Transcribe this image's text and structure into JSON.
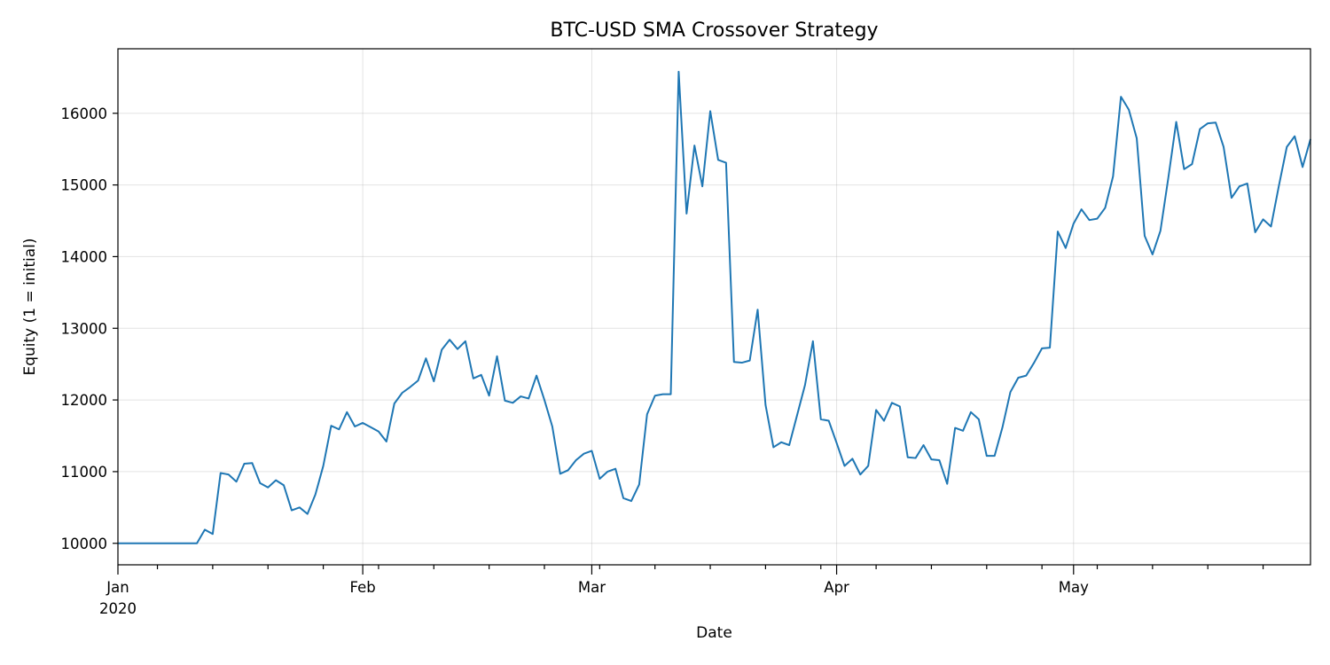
{
  "chart_data": {
    "type": "line",
    "title": "BTC-USD SMA Crossover Strategy",
    "xlabel": "Date",
    "ylabel": "Equity (1 = initial)",
    "xlim": [
      "2020-01-01",
      "2020-05-31"
    ],
    "ylim": [
      9700,
      16900
    ],
    "grid": true,
    "legend": "none",
    "colors": {
      "series": "#1f77b4"
    },
    "x_ticks": [
      {
        "date": "2020-01-01",
        "label": "Jan",
        "sublabel": "2020"
      },
      {
        "date": "2020-02-01",
        "label": "Feb",
        "sublabel": ""
      },
      {
        "date": "2020-03-01",
        "label": "Mar",
        "sublabel": ""
      },
      {
        "date": "2020-04-01",
        "label": "Apr",
        "sublabel": ""
      },
      {
        "date": "2020-05-01",
        "label": "May",
        "sublabel": ""
      }
    ],
    "x_minor_ticks": [
      "2020-01-06",
      "2020-01-13",
      "2020-01-20",
      "2020-01-27",
      "2020-02-03",
      "2020-02-10",
      "2020-02-17",
      "2020-02-24",
      "2020-03-02",
      "2020-03-09",
      "2020-03-16",
      "2020-03-23",
      "2020-03-30",
      "2020-04-06",
      "2020-04-13",
      "2020-04-20",
      "2020-04-27",
      "2020-05-04",
      "2020-05-11",
      "2020-05-18",
      "2020-05-25"
    ],
    "y_ticks": [
      10000,
      11000,
      12000,
      13000,
      14000,
      15000,
      16000
    ],
    "series": [
      {
        "x": [
          "2020-01-01",
          "2020-01-02",
          "2020-01-03",
          "2020-01-04",
          "2020-01-05",
          "2020-01-06",
          "2020-01-07",
          "2020-01-08",
          "2020-01-09",
          "2020-01-10",
          "2020-01-11",
          "2020-01-12",
          "2020-01-13",
          "2020-01-14",
          "2020-01-15",
          "2020-01-16",
          "2020-01-17",
          "2020-01-18",
          "2020-01-19",
          "2020-01-20",
          "2020-01-21",
          "2020-01-22",
          "2020-01-23",
          "2020-01-24",
          "2020-01-25",
          "2020-01-26",
          "2020-01-27",
          "2020-01-28",
          "2020-01-29",
          "2020-01-30",
          "2020-01-31",
          "2020-02-01",
          "2020-02-02",
          "2020-02-03",
          "2020-02-04",
          "2020-02-05",
          "2020-02-06",
          "2020-02-07",
          "2020-02-08",
          "2020-02-09",
          "2020-02-10",
          "2020-02-11",
          "2020-02-12",
          "2020-02-13",
          "2020-02-14",
          "2020-02-15",
          "2020-02-16",
          "2020-02-17",
          "2020-02-18",
          "2020-02-19",
          "2020-02-20",
          "2020-02-21",
          "2020-02-22",
          "2020-02-23",
          "2020-02-24",
          "2020-02-25",
          "2020-02-26",
          "2020-02-27",
          "2020-02-28",
          "2020-02-29",
          "2020-03-01",
          "2020-03-02",
          "2020-03-03",
          "2020-03-04",
          "2020-03-05",
          "2020-03-06",
          "2020-03-07",
          "2020-03-08",
          "2020-03-09",
          "2020-03-10",
          "2020-03-11",
          "2020-03-12",
          "2020-03-13",
          "2020-03-14",
          "2020-03-15",
          "2020-03-16",
          "2020-03-17",
          "2020-03-18",
          "2020-03-19",
          "2020-03-20",
          "2020-03-21",
          "2020-03-22",
          "2020-03-23",
          "2020-03-24",
          "2020-03-25",
          "2020-03-26",
          "2020-03-27",
          "2020-03-28",
          "2020-03-29",
          "2020-03-30",
          "2020-03-31",
          "2020-04-01",
          "2020-04-02",
          "2020-04-03",
          "2020-04-04",
          "2020-04-05",
          "2020-04-06",
          "2020-04-07",
          "2020-04-08",
          "2020-04-09",
          "2020-04-10",
          "2020-04-11",
          "2020-04-12",
          "2020-04-13",
          "2020-04-14",
          "2020-04-15",
          "2020-04-16",
          "2020-04-17",
          "2020-04-18",
          "2020-04-19",
          "2020-04-20",
          "2020-04-21",
          "2020-04-22",
          "2020-04-23",
          "2020-04-24",
          "2020-04-25",
          "2020-04-26",
          "2020-04-27",
          "2020-04-28",
          "2020-04-29",
          "2020-04-30",
          "2020-05-01",
          "2020-05-02",
          "2020-05-03",
          "2020-05-04",
          "2020-05-05",
          "2020-05-06",
          "2020-05-07",
          "2020-05-08",
          "2020-05-09",
          "2020-05-10",
          "2020-05-11",
          "2020-05-12",
          "2020-05-13",
          "2020-05-14",
          "2020-05-15",
          "2020-05-16",
          "2020-05-17",
          "2020-05-18",
          "2020-05-19",
          "2020-05-20",
          "2020-05-21",
          "2020-05-22",
          "2020-05-23",
          "2020-05-24",
          "2020-05-25",
          "2020-05-26",
          "2020-05-27",
          "2020-05-28",
          "2020-05-29",
          "2020-05-30",
          "2020-05-31"
        ],
        "y": [
          10000,
          10000,
          10000,
          10000,
          10000,
          10000,
          10000,
          10000,
          10000,
          10000,
          10000,
          10190,
          10130,
          10980,
          10960,
          10860,
          11110,
          11120,
          10840,
          10780,
          10880,
          10810,
          10460,
          10500,
          10410,
          10680,
          11080,
          11640,
          11590,
          11830,
          11630,
          11680,
          11620,
          11560,
          11420,
          11950,
          12100,
          12180,
          12270,
          12580,
          12260,
          12700,
          12840,
          12710,
          12820,
          12300,
          12350,
          12060,
          12610,
          11990,
          11960,
          12050,
          12020,
          12340,
          12000,
          11630,
          10970,
          11020,
          11160,
          11250,
          11290,
          10900,
          11000,
          11040,
          10630,
          10590,
          10820,
          11800,
          12060,
          12080,
          12080,
          16580,
          14600,
          15550,
          14980,
          16030,
          15350,
          15310,
          12530,
          12520,
          12550,
          13260,
          11930,
          11340,
          11410,
          11370,
          11790,
          12210,
          12820,
          11730,
          11710,
          11400,
          11080,
          11180,
          10960,
          11080,
          11860,
          11710,
          11960,
          11910,
          11200,
          11190,
          11370,
          11170,
          11160,
          10830,
          11610,
          11570,
          11830,
          11730,
          11220,
          11220,
          11620,
          12110,
          12310,
          12340,
          12520,
          12720,
          12730,
          14350,
          14120,
          14460,
          14660,
          14510,
          14530,
          14680,
          15120,
          16230,
          16050,
          15650,
          14290,
          14030,
          14360,
          15100,
          15880,
          15220,
          15290,
          15780,
          15860,
          15870,
          15530,
          14820,
          14980,
          15020,
          14340,
          14520,
          14420,
          14990,
          15530,
          15680,
          15250,
          15640
        ]
      }
    ]
  }
}
